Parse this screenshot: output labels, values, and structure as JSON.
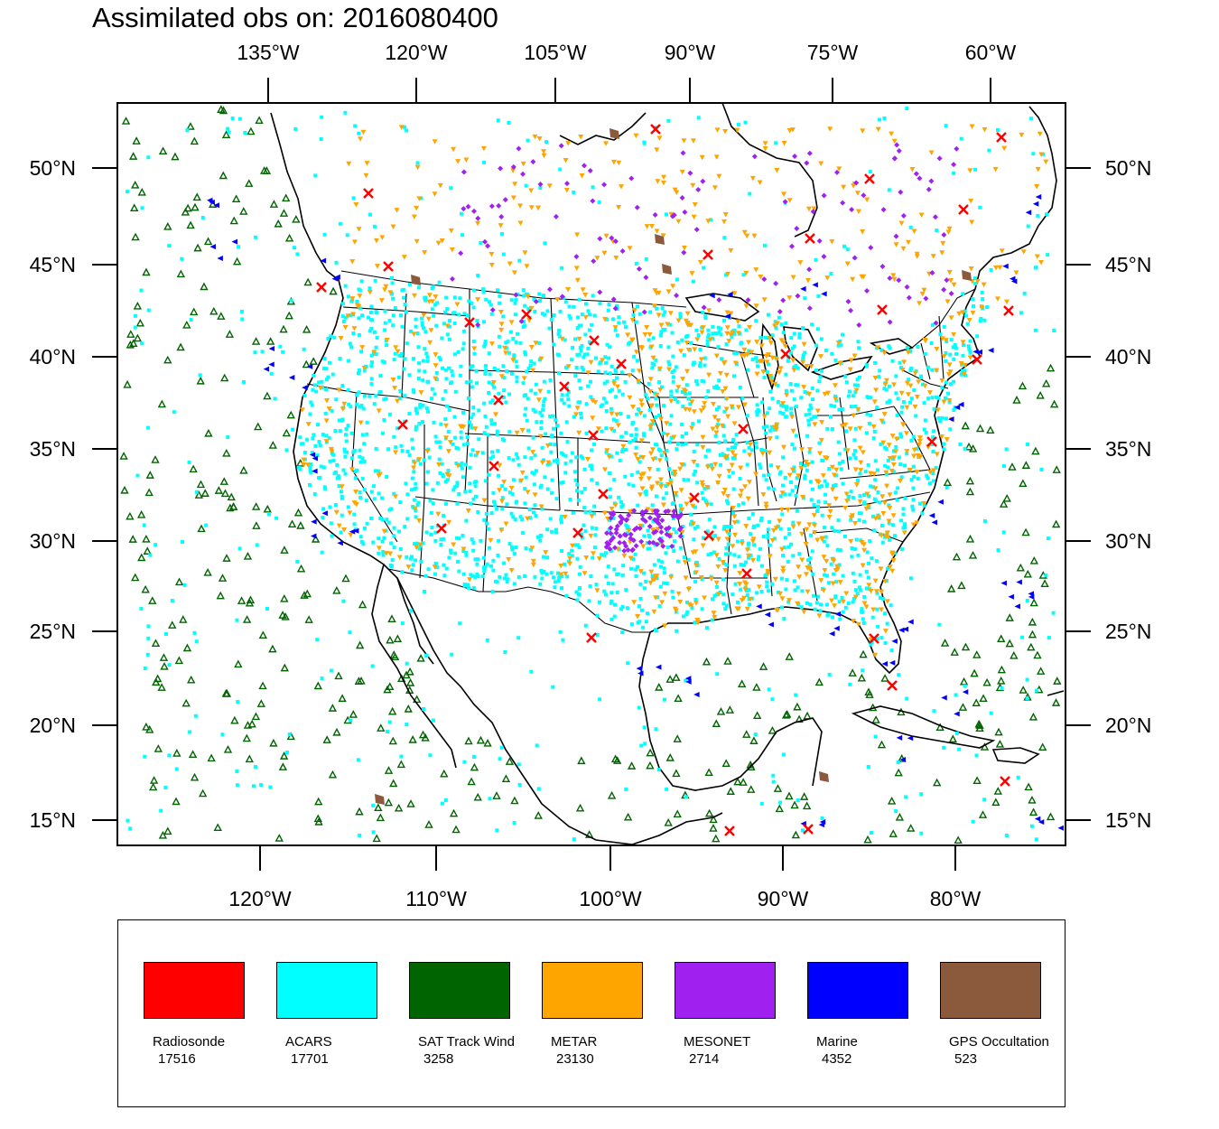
{
  "title": "Assimilated obs on: 2016080400",
  "top_axis_labels": [
    "135°W",
    "120°W",
    "105°W",
    "90°W",
    "75°W",
    "60°W"
  ],
  "bottom_axis_labels": [
    "120°W",
    "110°W",
    "100°W",
    "90°W",
    "80°W"
  ],
  "left_axis_labels": [
    "50°N",
    "45°N",
    "40°N",
    "35°N",
    "30°N",
    "25°N",
    "20°N",
    "15°N"
  ],
  "right_axis_labels": [
    "50°N",
    "45°N",
    "40°N",
    "35°N",
    "30°N",
    "25°N",
    "20°N",
    "15°N"
  ],
  "legend": [
    {
      "name": "Radiosonde",
      "count": "17516",
      "color": "#ff0000"
    },
    {
      "name": "ACARS",
      "count": "17701",
      "color": "#00ffff"
    },
    {
      "name": "SAT Track Wind",
      "count": "3258",
      "color": "#006400"
    },
    {
      "name": "METAR",
      "count": "23130",
      "color": "#ffa500"
    },
    {
      "name": "MESONET",
      "count": "2714",
      "color": "#a020f0"
    },
    {
      "name": "Marine",
      "count": "4352",
      "color": "#0000ff"
    },
    {
      "name": "GPS Occultation",
      "count": "523",
      "color": "#8b5a3c"
    }
  ]
}
